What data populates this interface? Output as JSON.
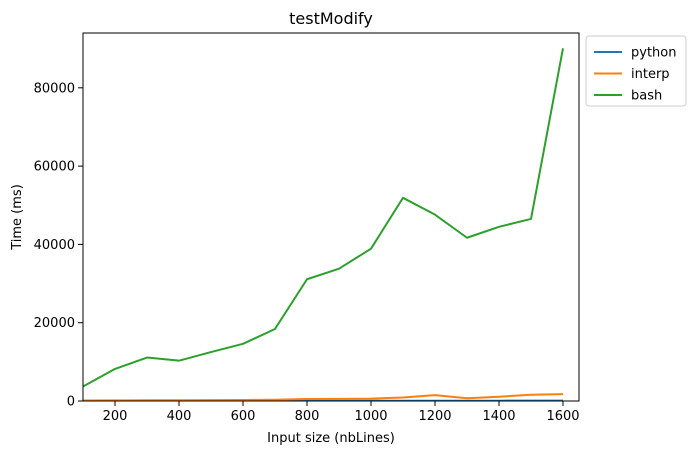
{
  "chart_data": {
    "type": "line",
    "title": "testModify",
    "xlabel": "Input size (nbLines)",
    "ylabel": "Time (ms)",
    "xlim": [
      100,
      1650
    ],
    "ylim": [
      0,
      94000
    ],
    "xticks": [
      200,
      400,
      600,
      800,
      1000,
      1200,
      1400,
      1600
    ],
    "yticks": [
      0,
      20000,
      40000,
      60000,
      80000
    ],
    "grid": false,
    "legend_position": "outside-top-right",
    "x": [
      100,
      200,
      300,
      400,
      500,
      600,
      700,
      800,
      900,
      1000,
      1100,
      1200,
      1300,
      1400,
      1500,
      1600
    ],
    "series": [
      {
        "name": "python",
        "color": "#1f77b4",
        "values": [
          20,
          25,
          30,
          30,
          35,
          40,
          45,
          50,
          55,
          60,
          65,
          70,
          75,
          80,
          85,
          90
        ]
      },
      {
        "name": "interp",
        "color": "#ff7f0e",
        "values": [
          120,
          150,
          180,
          200,
          230,
          260,
          320,
          500,
          550,
          600,
          900,
          1500,
          700,
          1100,
          1600,
          1750
        ]
      },
      {
        "name": "bash",
        "color": "#2ca02c",
        "values": [
          3700,
          8200,
          11100,
          10300,
          12500,
          14600,
          18400,
          31100,
          33800,
          38900,
          51900,
          47600,
          41700,
          44500,
          46500,
          90100
        ]
      }
    ]
  }
}
